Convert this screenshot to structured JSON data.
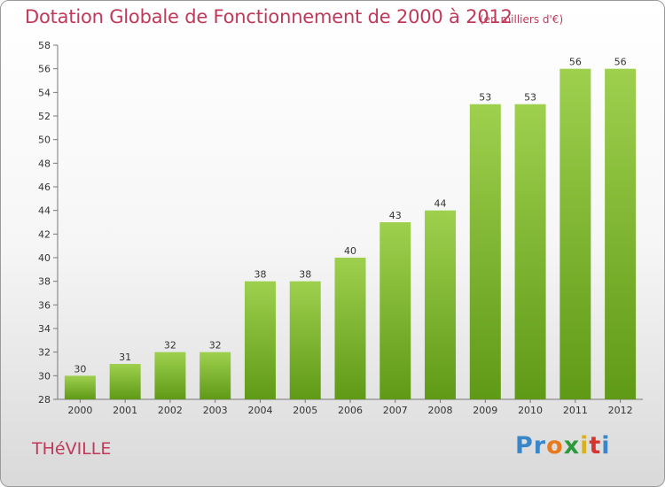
{
  "header": {
    "title": "Dotation Globale de Fonctionnement de 2000 à 2012",
    "unit": "(en milliers d'€)"
  },
  "footer": {
    "commune": "THéVILLE",
    "logo_letters": [
      "P",
      "r",
      "o",
      "x",
      "i",
      "t",
      "i"
    ],
    "logo_colors": [
      "#3a86c8",
      "#3a86c8",
      "#e87a1e",
      "#2a9a3a",
      "#d8b21e",
      "#d8342e",
      "#3a86c8"
    ]
  },
  "chart_data": {
    "type": "bar",
    "title": "Dotation Globale de Fonctionnement de 2000 à 2012",
    "subtitle": "(en milliers d'€)",
    "xlabel": "",
    "ylabel": "",
    "categories": [
      "2000",
      "2001",
      "2002",
      "2003",
      "2004",
      "2005",
      "2006",
      "2007",
      "2008",
      "2009",
      "2010",
      "2011",
      "2012"
    ],
    "values": [
      30,
      31,
      32,
      32,
      38,
      38,
      40,
      43,
      44,
      53,
      53,
      56,
      56
    ],
    "ylim": [
      28,
      58
    ],
    "yticks": [
      28,
      30,
      32,
      34,
      36,
      38,
      40,
      42,
      44,
      46,
      48,
      50,
      52,
      54,
      56,
      58
    ],
    "grid": false,
    "legend": "none",
    "bar_color_top": "#9ed04e",
    "bar_color_bottom": "#5f9a16"
  }
}
